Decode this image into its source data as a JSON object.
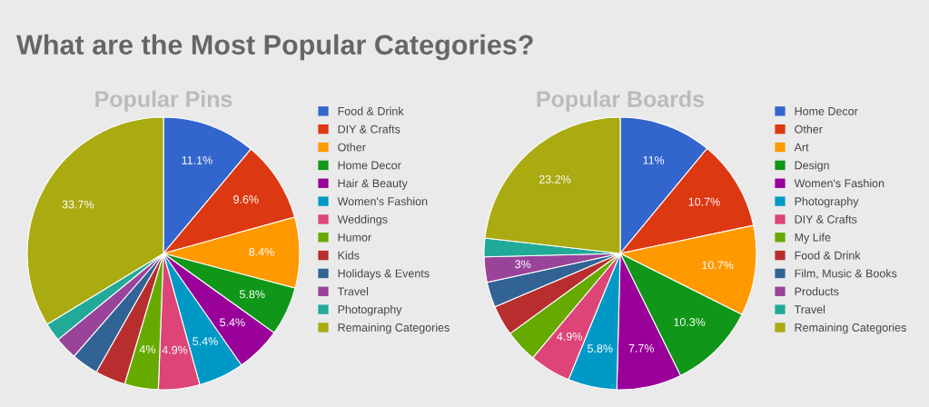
{
  "chart_data": [
    {
      "type": "pie",
      "title": "Popular Pins",
      "annotations": [
        "What are the Most Popular Categories?"
      ],
      "legend": "right",
      "categories": [
        "Food & Drink",
        "DIY & Crafts",
        "Other",
        "Home Decor",
        "Hair & Beauty",
        "Women's Fashion",
        "Weddings",
        "Humor",
        "Kids",
        "Holidays & Events",
        "Travel",
        "Photography",
        "Remaining Categories"
      ],
      "values": [
        11.1,
        9.6,
        8.4,
        5.8,
        5.4,
        5.4,
        4.9,
        4,
        3.6,
        3.2,
        2.7,
        2.2,
        33.7
      ],
      "value_labels": [
        "11.1%",
        "9.6%",
        "8.4%",
        "5.8%",
        "5.4%",
        "5.4%",
        "4.9%",
        "4%",
        null,
        null,
        null,
        null,
        "33.7%"
      ],
      "colors": [
        "#3366cc",
        "#dc3912",
        "#ff9900",
        "#109618",
        "#990099",
        "#0099c6",
        "#dd4477",
        "#66aa00",
        "#b82e2e",
        "#316395",
        "#994499",
        "#22aa99",
        "#aaaa11"
      ]
    },
    {
      "type": "pie",
      "title": "Popular Boards",
      "legend": "right",
      "categories": [
        "Home Decor",
        "Other",
        "Art",
        "Design",
        "Women's Fashion",
        "Photography",
        "DIY & Crafts",
        "My Life",
        "Food & Drink",
        "Film, Music & Books",
        "Products",
        "Travel",
        "Remaining Categories"
      ],
      "values": [
        11,
        10.7,
        10.7,
        10.3,
        7.7,
        5.8,
        4.9,
        3.9,
        3.6,
        3.0,
        3,
        2.2,
        23.2
      ],
      "value_labels": [
        "11%",
        "10.7%",
        "10.7%",
        "10.3%",
        "7.7%",
        "5.8%",
        "4.9%",
        null,
        null,
        null,
        "3%",
        null,
        "23.2%"
      ],
      "colors": [
        "#3366cc",
        "#dc3912",
        "#ff9900",
        "#109618",
        "#990099",
        "#0099c6",
        "#dd4477",
        "#66aa00",
        "#b82e2e",
        "#316395",
        "#994499",
        "#22aa99",
        "#aaaa11"
      ]
    }
  ]
}
